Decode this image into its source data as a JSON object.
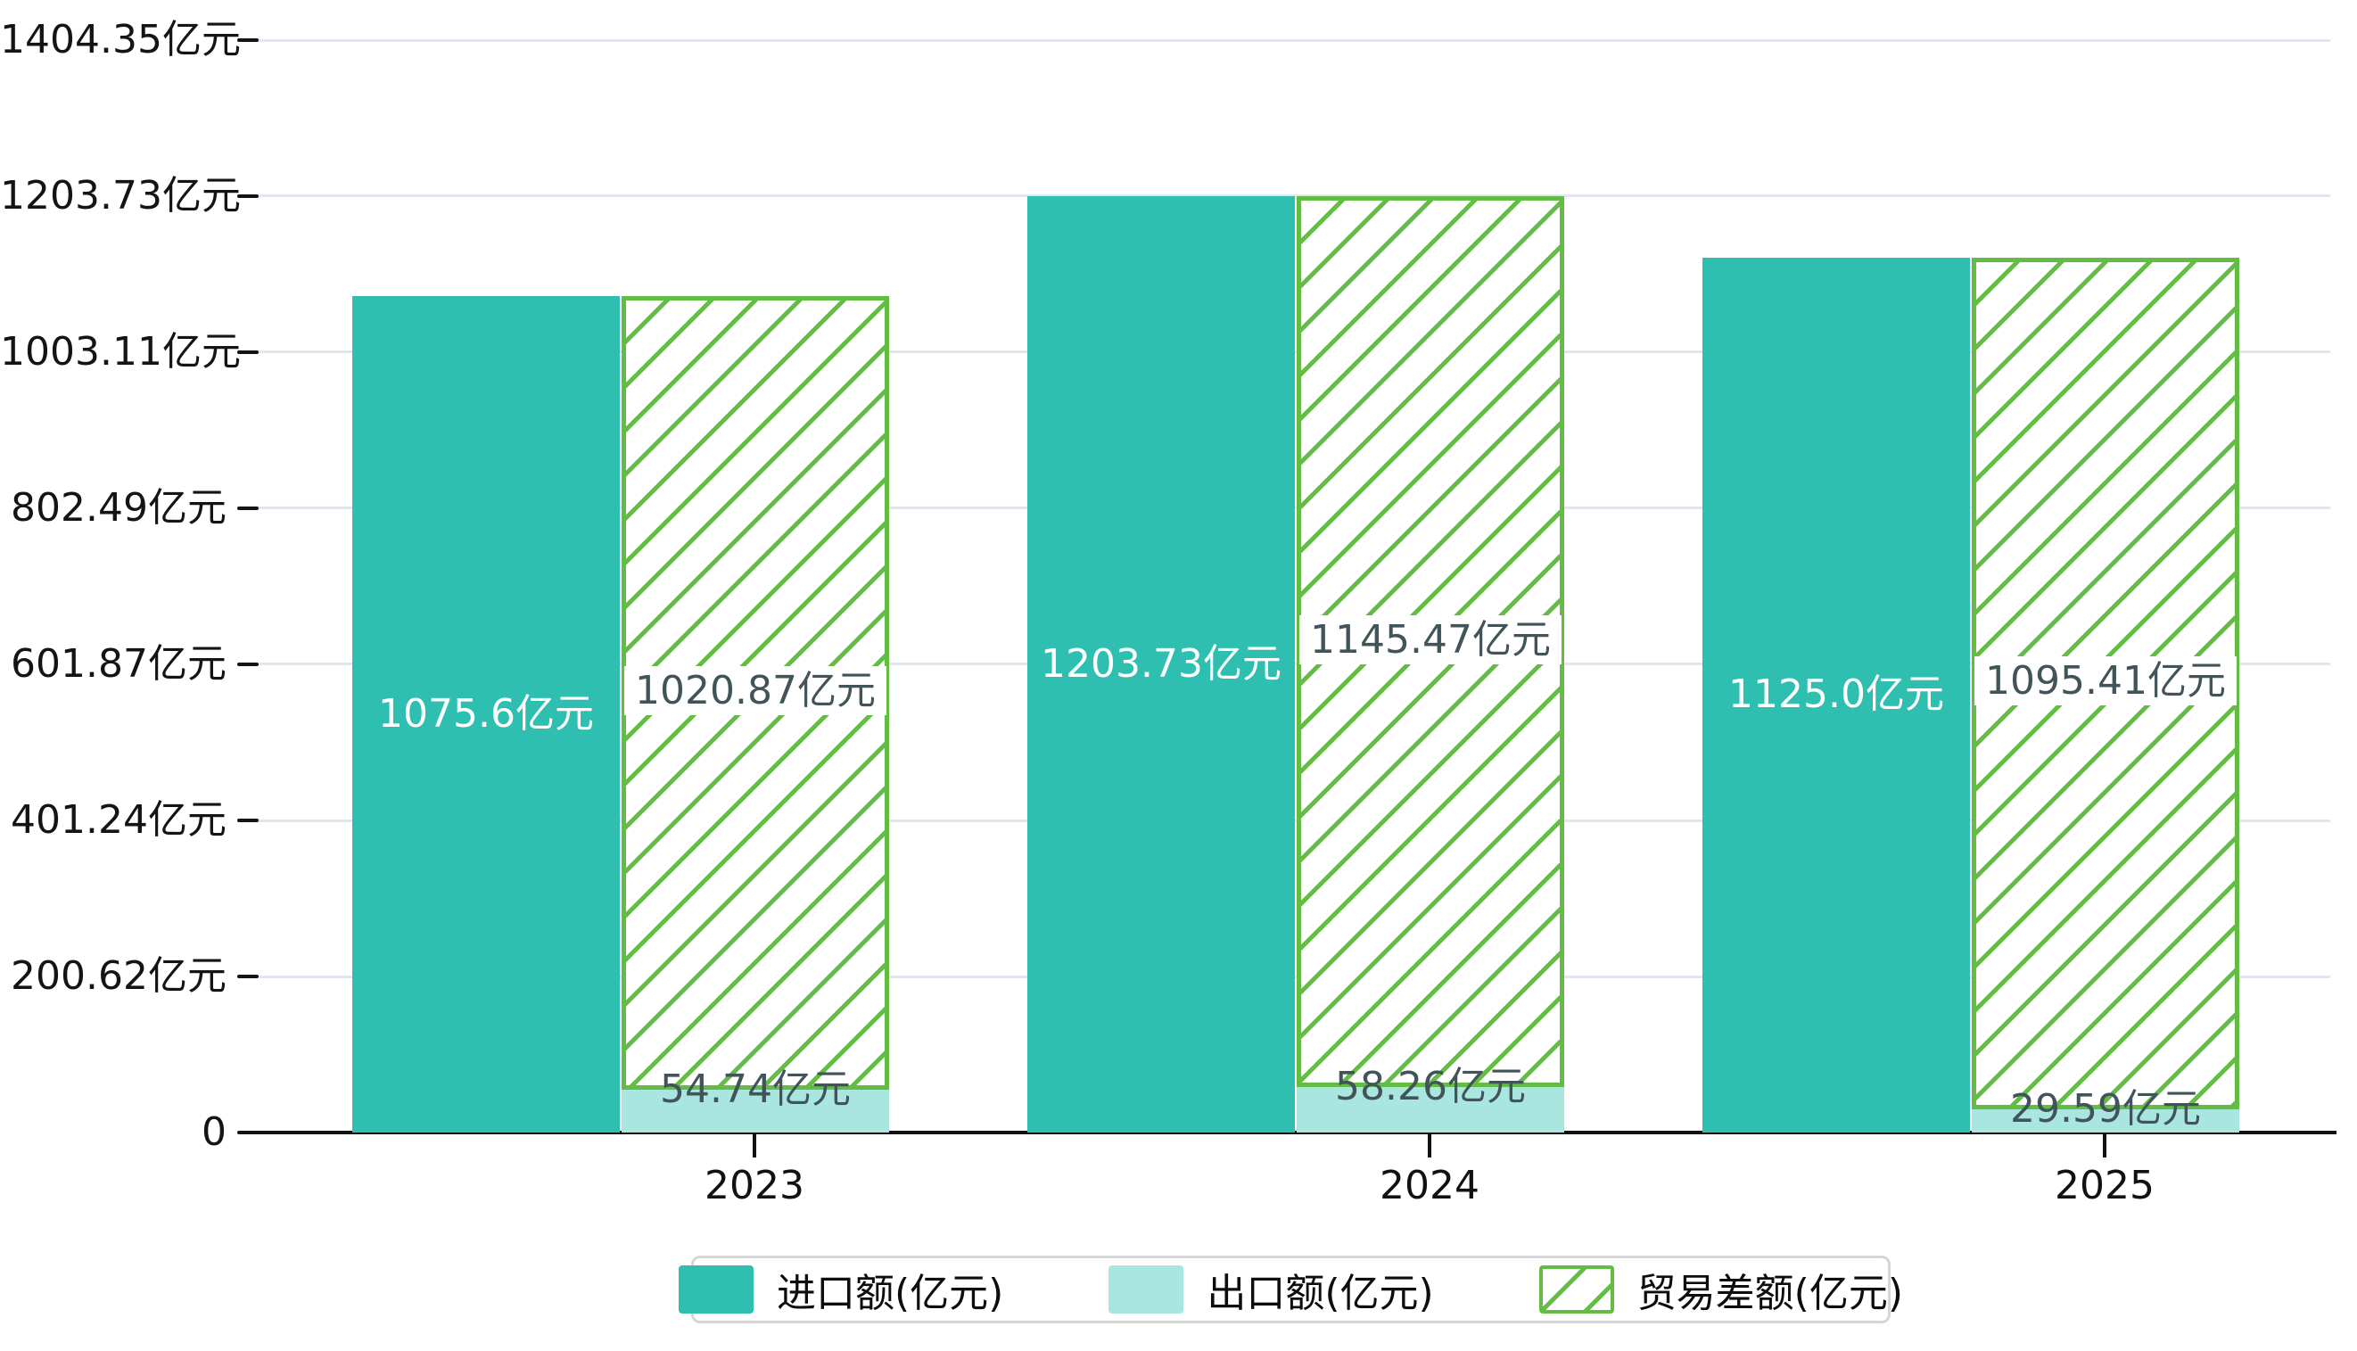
{
  "chart_data": {
    "type": "bar",
    "title": "",
    "unit": "亿元",
    "categories": [
      "2023",
      "2024",
      "2025"
    ],
    "series": [
      {
        "name": "进口额(亿元)",
        "style": "solid",
        "color": "#2fbfb1",
        "values": [
          1075.6,
          1203.73,
          1125.0
        ],
        "labels": [
          "1075.6亿元",
          "1203.73亿元",
          "1125.0亿元"
        ]
      },
      {
        "name": "出口额(亿元)",
        "style": "solid",
        "color": "#a9e6df",
        "values": [
          54.74,
          58.26,
          29.59
        ],
        "labels": [
          "54.74亿元",
          "58.26亿元",
          "29.59亿元"
        ]
      },
      {
        "name": "贸易差额(亿元)",
        "style": "hatched",
        "color": "#63bc43",
        "stacked_on": "出口额(亿元)",
        "values": [
          1020.87,
          1145.47,
          1095.41
        ],
        "labels": [
          "1020.87亿元",
          "1145.47亿元",
          "1095.41亿元"
        ]
      }
    ],
    "y_axis": {
      "tick_labels": [
        "1404.35亿元",
        "1203.73亿元",
        "1003.11亿元",
        "802.49亿元",
        "601.87亿元",
        "401.24亿元",
        "200.62亿元",
        "0"
      ],
      "tick_values": [
        1404.35,
        1203.73,
        1003.11,
        802.49,
        601.87,
        401.24,
        200.62,
        0
      ],
      "range": [
        0,
        1404.35
      ]
    },
    "x_axis": {
      "tick_labels": [
        "2023",
        "2024",
        "2025"
      ]
    },
    "grid": true,
    "legend": {
      "position": "bottom",
      "entries": [
        "进口额(亿元)",
        "出口额(亿元)",
        "贸易差额(亿元)"
      ]
    }
  },
  "colors": {
    "import_bar": "#2fbfb1",
    "export_bar": "#a9e6df",
    "hatch_line": "#63bc43",
    "gridline": "#e1e6ef",
    "axis": "#111111",
    "label_on_import": "#ffffff",
    "label_dark": "#405459",
    "legend_border": "#d6d6d6",
    "background": "#ffffff"
  }
}
